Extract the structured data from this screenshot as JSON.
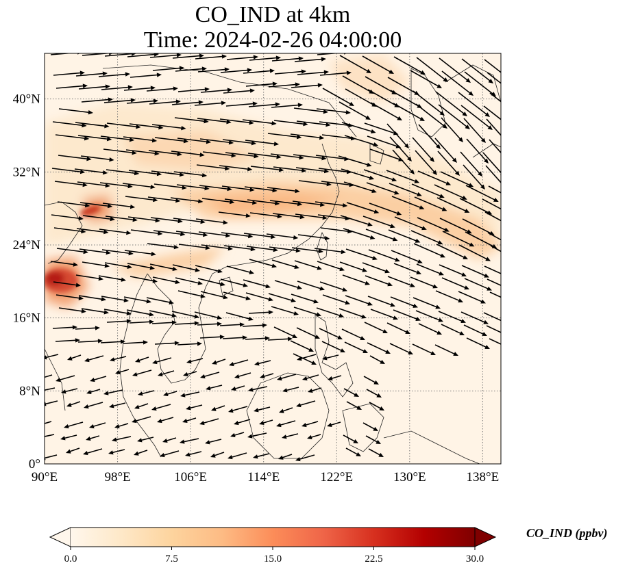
{
  "map": {
    "title": "CO_IND at 4km",
    "subtitle": "Time: 2024-02-26 04:00:00",
    "variable": "CO_IND",
    "height": "4km",
    "time": "2024-02-26 04:00:00",
    "projection": "PlateCarree",
    "extent": {
      "lon": [
        90,
        140
      ],
      "lat": [
        0,
        45
      ]
    },
    "gridlines": "dotted",
    "x_ticks": [
      "90°E",
      "98°E",
      "106°E",
      "114°E",
      "122°E",
      "130°E",
      "138°E"
    ],
    "y_ticks": [
      "0°",
      "8°N",
      "16°N",
      "24°N",
      "32°N",
      "40°N"
    ],
    "wind_vectors": true
  },
  "colorbar": {
    "label": "CO_IND (ppbv)",
    "colormap": "OrRd",
    "range": [
      0,
      30
    ],
    "ticks": [
      "0.0",
      "7.5",
      "15.0",
      "22.5",
      "30.0"
    ],
    "extend": "both",
    "colors": [
      "#fff7ec",
      "#fee8c8",
      "#fdd49e",
      "#fdbb84",
      "#fc8d59",
      "#ef6548",
      "#d7301f",
      "#b30000",
      "#7f0000"
    ]
  }
}
